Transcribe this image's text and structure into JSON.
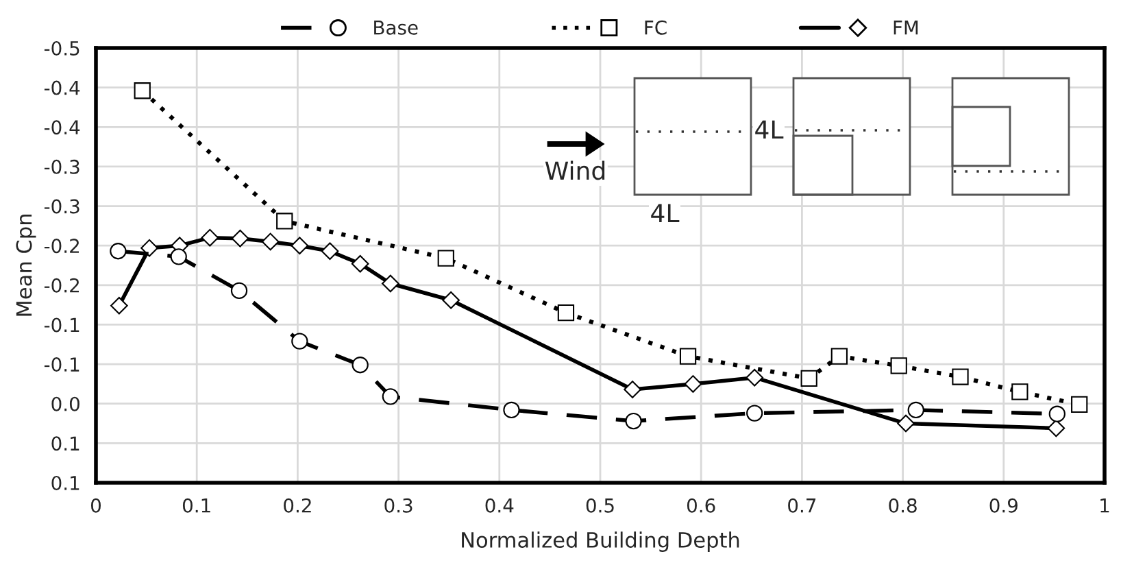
{
  "chart_data": {
    "type": "line",
    "xlabel": "Normalized Building Depth",
    "ylabel": "Mean Cpn",
    "xlim": [
      0,
      1
    ],
    "xticks": [
      0,
      0.1,
      0.2,
      0.3,
      0.4,
      0.5,
      0.6,
      0.7,
      0.8,
      0.9,
      1
    ],
    "ylim": [
      0.1,
      -0.45
    ],
    "yticks": [
      {
        "value": -0.45,
        "label": "-0.5"
      },
      {
        "value": -0.4,
        "label": "-0.4"
      },
      {
        "value": -0.35,
        "label": "-0.4"
      },
      {
        "value": -0.3,
        "label": "-0.3"
      },
      {
        "value": -0.25,
        "label": "-0.3"
      },
      {
        "value": -0.2,
        "label": "-0.2"
      },
      {
        "value": -0.15,
        "label": "-0.2"
      },
      {
        "value": -0.1,
        "label": "-0.1"
      },
      {
        "value": -0.05,
        "label": "-0.1"
      },
      {
        "value": 0,
        "label": "0.0"
      },
      {
        "value": 0.05,
        "label": "0.1"
      },
      {
        "value": 0.1,
        "label": "0.1"
      }
    ],
    "grid": true,
    "legend": "top",
    "series": [
      {
        "name": "Base",
        "color": "#000000",
        "marker": "circle",
        "line_style": "dashed",
        "x": [
          0.022,
          0.082,
          0.142,
          0.202,
          0.262,
          0.292,
          0.412,
          0.533,
          0.653,
          0.813,
          0.953
        ],
        "values": [
          -0.193,
          -0.186,
          -0.143,
          -0.079,
          -0.049,
          -0.009,
          0.008,
          0.022,
          0.012,
          0.008,
          0.013
        ]
      },
      {
        "name": "FC",
        "color": "#000000",
        "marker": "square",
        "line_style": "dotted",
        "x": [
          0.046,
          0.187,
          0.347,
          0.466,
          0.587,
          0.707,
          0.737,
          0.796,
          0.857,
          0.916,
          0.975
        ],
        "values": [
          -0.396,
          -0.231,
          -0.184,
          -0.115,
          -0.06,
          -0.032,
          -0.06,
          -0.048,
          -0.034,
          -0.015,
          0.001
        ]
      },
      {
        "name": "FM",
        "color": "#000000",
        "marker": "diamond",
        "line_style": "solid",
        "x": [
          0.023,
          0.053,
          0.083,
          0.113,
          0.143,
          0.173,
          0.202,
          0.232,
          0.262,
          0.292,
          0.352,
          0.532,
          0.592,
          0.653,
          0.803,
          0.952
        ],
        "values": [
          -0.124,
          -0.197,
          -0.2,
          -0.21,
          -0.209,
          -0.205,
          -0.2,
          -0.193,
          -0.177,
          -0.152,
          -0.131,
          -0.018,
          -0.025,
          -0.033,
          0.025,
          0.031
        ]
      }
    ],
    "annotations": [
      "Wind",
      "4L",
      "4L"
    ]
  }
}
